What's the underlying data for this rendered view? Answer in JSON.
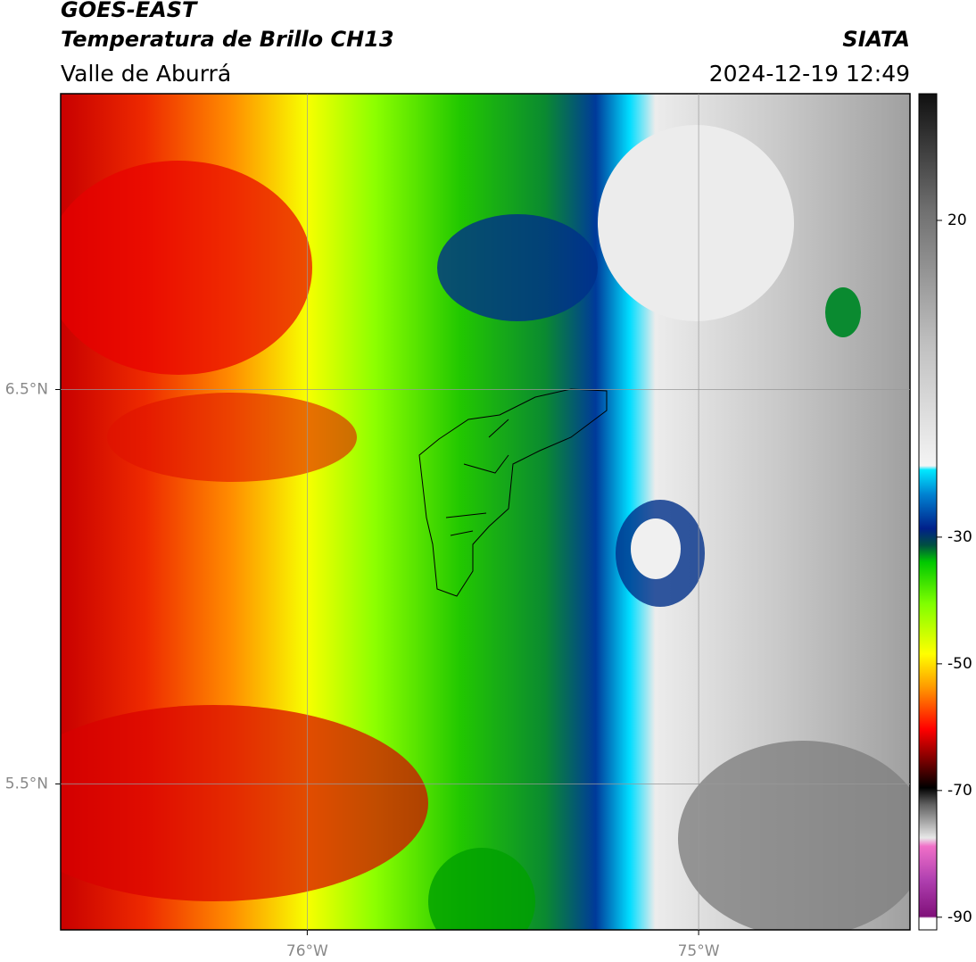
{
  "header": {
    "title": "GOES-EAST",
    "subtitle": "Temperatura de Brillo CH13",
    "region": "Valle de Aburrá",
    "source": "SIATA",
    "datetime": "2024-12-19 12:49"
  },
  "map": {
    "xlim": [
      -76.63,
      -74.46
    ],
    "ylim": [
      5.13,
      7.25
    ],
    "xticks": [
      {
        "value": -76,
        "label": "76°W"
      },
      {
        "value": -75,
        "label": "75°W"
      }
    ],
    "yticks": [
      {
        "value": 5.5,
        "label": "5.5°N"
      },
      {
        "value": 6.5,
        "label": "6.5°N"
      }
    ],
    "grid": true,
    "colorbar": {
      "lim": [
        -92,
        40
      ],
      "ticks": [
        20,
        -30,
        -50,
        -70,
        -90
      ]
    }
  }
}
